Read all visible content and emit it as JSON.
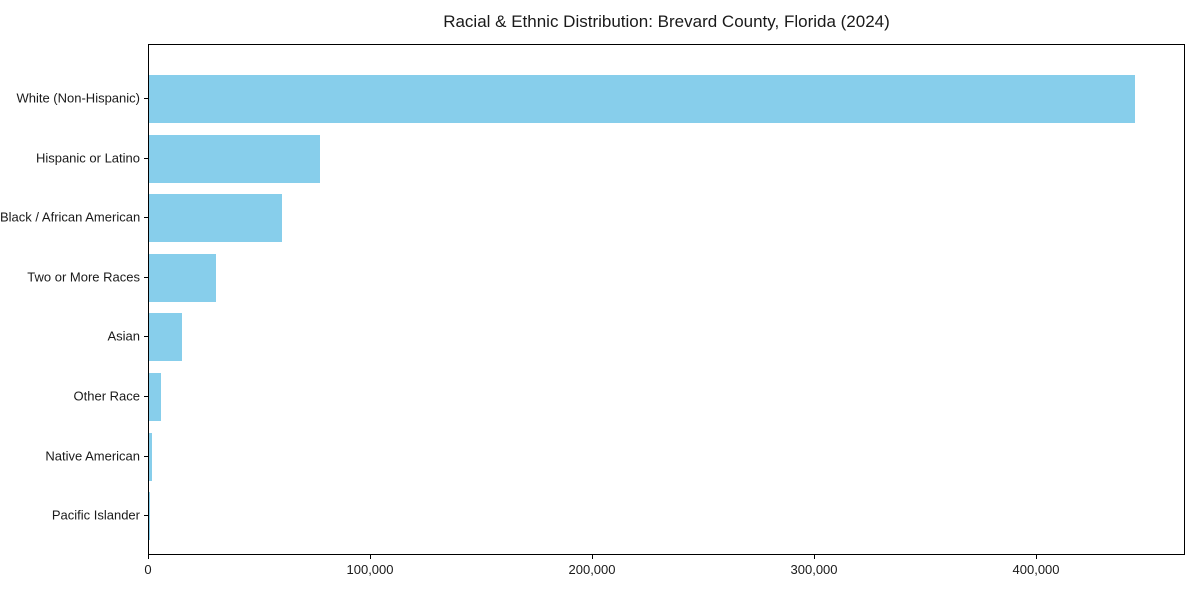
{
  "chart_data": {
    "type": "bar",
    "orientation": "horizontal",
    "title": "Racial & Ethnic Distribution: Brevard County, Florida (2024)",
    "categories": [
      "White (Non-Hispanic)",
      "Hispanic or Latino",
      "Black / African American",
      "Two or More Races",
      "Asian",
      "Other Race",
      "Native American",
      "Pacific Islander"
    ],
    "values": [
      444000,
      77000,
      60000,
      30000,
      15000,
      5500,
      1500,
      300
    ],
    "bar_color": "#87CEEB",
    "axis_color": "#000000",
    "text_color": "#1a1a1a",
    "background_color": "#ffffff",
    "xlim": [
      0,
      466200
    ],
    "xticks": [
      0,
      100000,
      200000,
      300000,
      400000
    ],
    "xtick_labels": [
      "0",
      "100,000",
      "200,000",
      "300,000",
      "400,000"
    ],
    "xlabel": "",
    "ylabel": "",
    "grid": false,
    "legend": "none",
    "sort": "descending-top-to-bottom"
  }
}
